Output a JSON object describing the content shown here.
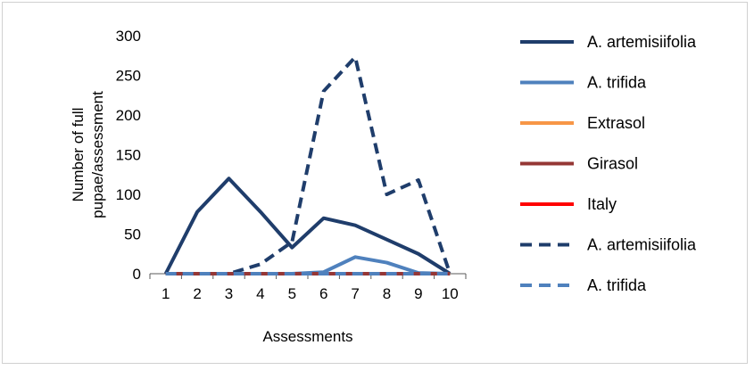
{
  "chart_data": {
    "type": "line",
    "title": "",
    "xlabel": "Assessments",
    "ylabel_lines": [
      "Number of full",
      "pupae/assessment"
    ],
    "categories": [
      "1",
      "2",
      "3",
      "4",
      "5",
      "6",
      "7",
      "8",
      "9",
      "10"
    ],
    "ylim": [
      0,
      300
    ],
    "yticks": [
      0,
      50,
      100,
      150,
      200,
      250,
      300
    ],
    "grid": false,
    "legend_position": "right",
    "series": [
      {
        "name": "A. artemisiifolia",
        "color": "#1f3d6b",
        "dash": "solid",
        "values": [
          0,
          78,
          120,
          78,
          33,
          70,
          61,
          43,
          25,
          0
        ]
      },
      {
        "name": "A. trifida",
        "color": "#4f81bd",
        "dash": "solid",
        "values": [
          0,
          0,
          0,
          0,
          0,
          2,
          21,
          14,
          1,
          0
        ]
      },
      {
        "name": "Extrasol",
        "color": "#f79646",
        "dash": "solid",
        "values": [
          0,
          0,
          0,
          0,
          0,
          0,
          0,
          0,
          0,
          0
        ]
      },
      {
        "name": "Girasol",
        "color": "#953735",
        "dash": "solid",
        "values": [
          0,
          0,
          0,
          0,
          0,
          0,
          0,
          0,
          0,
          0
        ]
      },
      {
        "name": "Italy",
        "color": "#ff0000",
        "dash": "dash",
        "values": [
          0,
          0,
          0,
          0,
          0,
          0,
          0,
          0,
          0,
          0
        ]
      },
      {
        "name": "A. artemisiifolia",
        "color": "#1f3d6b",
        "dash": "dash",
        "values": [
          0,
          0,
          0,
          12,
          40,
          230,
          273,
          100,
          118,
          0
        ]
      },
      {
        "name": "A. trifida",
        "color": "#4f81bd",
        "dash": "dash",
        "values": [
          0,
          0,
          0,
          0,
          0,
          0,
          0,
          0,
          0,
          0
        ]
      }
    ],
    "legend": [
      {
        "name": "A. artemisiifolia",
        "color": "#1f3d6b",
        "dash": "solid"
      },
      {
        "name": "A. trifida",
        "color": "#4f81bd",
        "dash": "solid"
      },
      {
        "name": "Extrasol",
        "color": "#f79646",
        "dash": "solid"
      },
      {
        "name": "Girasol",
        "color": "#953735",
        "dash": "solid"
      },
      {
        "name": "Italy",
        "color": "#ff0000",
        "dash": "solid"
      },
      {
        "name": "A. artemisiifolia",
        "color": "#1f3d6b",
        "dash": "dash"
      },
      {
        "name": "A. trifida",
        "color": "#4f81bd",
        "dash": "dash"
      }
    ]
  }
}
